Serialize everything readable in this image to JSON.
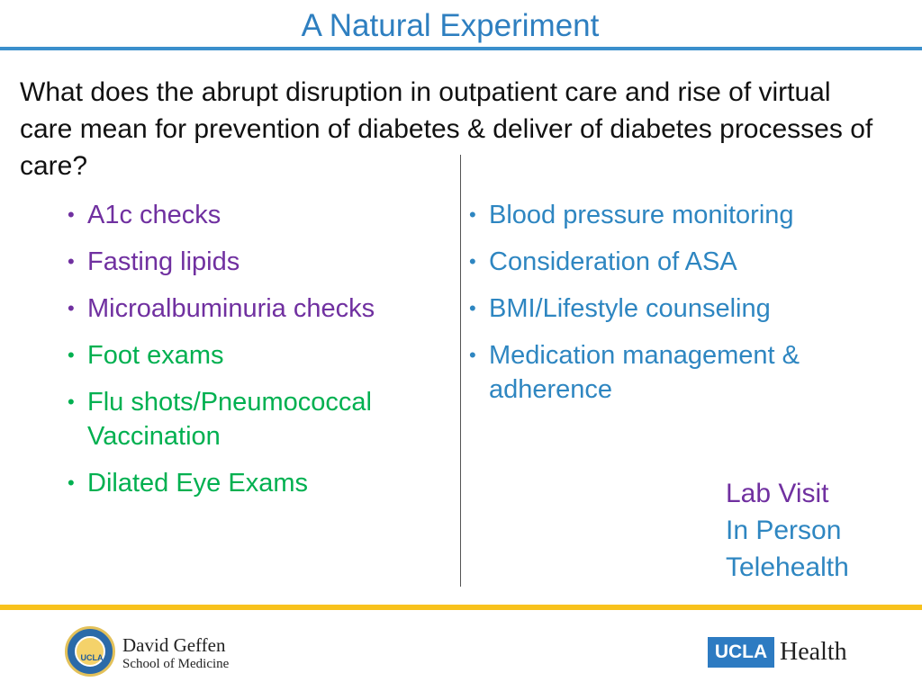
{
  "slide": {
    "title": "A Natural Experiment",
    "question": "What does the abrupt disruption in outpatient care and rise of virtual care mean for prevention of diabetes & deliver of diabetes processes of care?",
    "left_items": [
      {
        "label": "A1c checks",
        "color": "#7030a0"
      },
      {
        "label": "Fasting lipids",
        "color": "#7030a0"
      },
      {
        "label": "Microalbuminuria checks",
        "color": "#7030a0"
      },
      {
        "label": "Foot exams",
        "color": "#00b050"
      },
      {
        "label": "Flu shots/Pneumococcal Vaccination",
        "color": "#00b050"
      },
      {
        "label": "Dilated Eye Exams",
        "color": "#00b050"
      }
    ],
    "right_items": [
      {
        "label": "Blood pressure monitoring",
        "color": "#2e86c1"
      },
      {
        "label": "Consideration of ASA",
        "color": "#2e86c1"
      },
      {
        "label": "BMI/Lifestyle counseling",
        "color": "#2e86c1"
      },
      {
        "label": "Medication management & adherence",
        "color": "#2e86c1"
      }
    ],
    "legend": {
      "lab_visit": "Lab Visit",
      "in_person": "In Person",
      "telehealth": "Telehealth"
    }
  },
  "footer": {
    "left_logo": {
      "seal_text": "UCLA",
      "line1": "David Geffen",
      "line2": "School of Medicine"
    },
    "right_logo": {
      "box_text": "UCLA",
      "word": "Health"
    }
  },
  "colors": {
    "title_blue": "#2e7fc0",
    "rule_blue": "#3a8fcc",
    "rule_gold": "#f8c21c",
    "purple": "#7030a0",
    "green": "#00b050",
    "blue": "#2e86c1"
  }
}
